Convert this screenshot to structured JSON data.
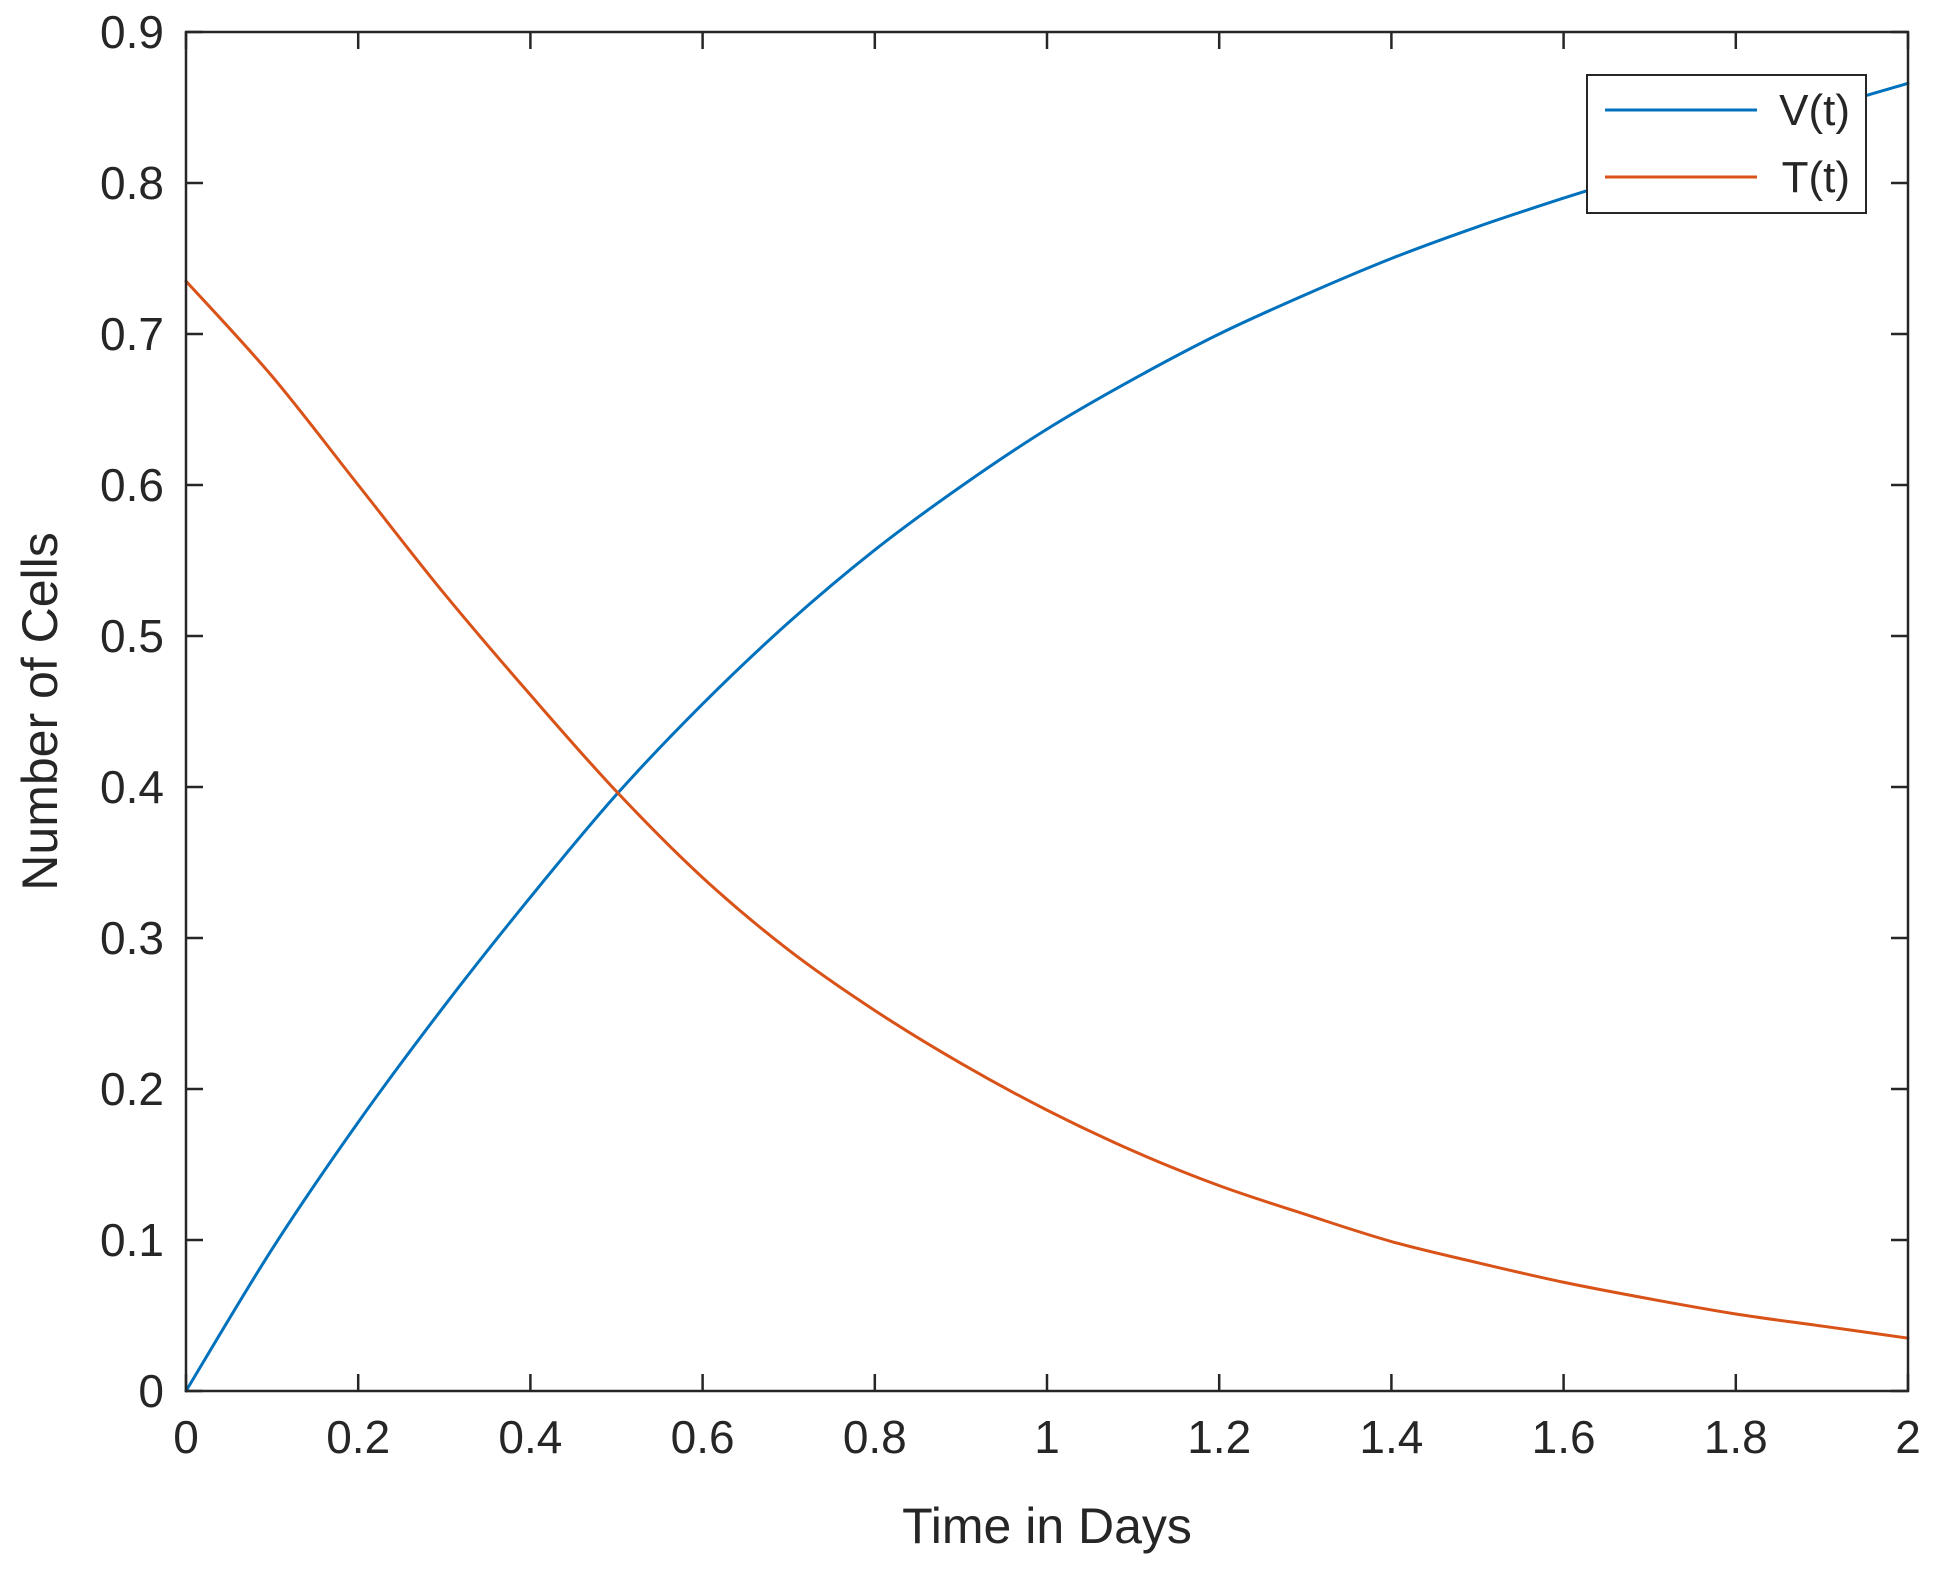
{
  "chart_data": {
    "type": "line",
    "title": "",
    "xlabel": "Time in Days",
    "ylabel": "Number of Cells",
    "xlim": [
      0,
      2
    ],
    "ylim": [
      0,
      0.9
    ],
    "xticks": [
      0,
      0.2,
      0.4,
      0.6,
      0.8,
      1,
      1.2,
      1.4,
      1.6,
      1.8,
      2
    ],
    "xtick_labels": [
      "0",
      "0.2",
      "0.4",
      "0.6",
      "0.8",
      "1",
      "1.2",
      "1.4",
      "1.6",
      "1.8",
      "2"
    ],
    "yticks": [
      0,
      0.1,
      0.2,
      0.3,
      0.4,
      0.5,
      0.6,
      0.7,
      0.8,
      0.9
    ],
    "ytick_labels": [
      "0",
      "0.1",
      "0.2",
      "0.3",
      "0.4",
      "0.5",
      "0.6",
      "0.7",
      "0.8",
      "0.9"
    ],
    "grid": false,
    "legend_position": "top-right",
    "x": [
      0,
      0.1,
      0.2,
      0.3,
      0.4,
      0.5,
      0.6,
      0.7,
      0.8,
      0.9,
      1.0,
      1.1,
      1.2,
      1.3,
      1.4,
      1.5,
      1.6,
      1.7,
      1.8,
      1.9,
      2.0
    ],
    "series": [
      {
        "name": "V(t)",
        "color": "#0072BD",
        "values": [
          0.0,
          0.094,
          0.178,
          0.255,
          0.327,
          0.395,
          0.455,
          0.509,
          0.557,
          0.599,
          0.637,
          0.67,
          0.7,
          0.726,
          0.75,
          0.771,
          0.79,
          0.808,
          0.829,
          0.849,
          0.866
        ]
      },
      {
        "name": "T(t)",
        "color": "#D95319",
        "values": [
          0.735,
          0.672,
          0.6,
          0.528,
          0.461,
          0.397,
          0.34,
          0.292,
          0.252,
          0.217,
          0.186,
          0.159,
          0.136,
          0.117,
          0.099,
          0.085,
          0.072,
          0.061,
          0.051,
          0.043,
          0.035
        ]
      }
    ]
  }
}
